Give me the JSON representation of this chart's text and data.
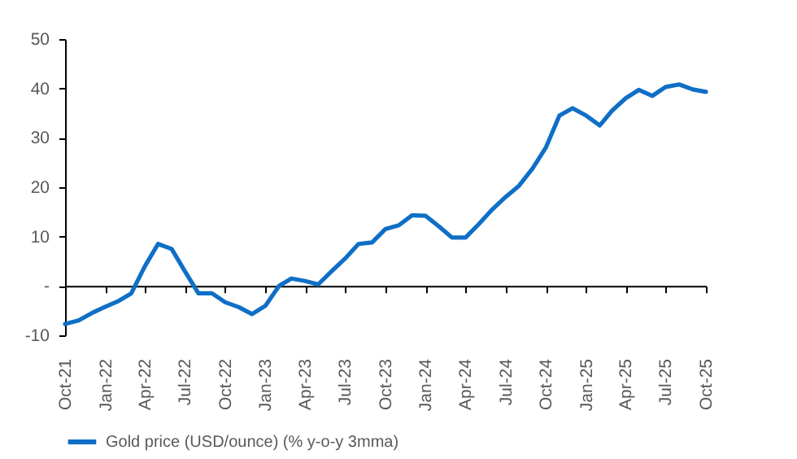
{
  "chart_data": {
    "type": "line",
    "x": [
      "2021-10",
      "2021-11",
      "2021-12",
      "2022-01",
      "2022-02",
      "2022-03",
      "2022-04",
      "2022-05",
      "2022-06",
      "2022-07",
      "2022-08",
      "2022-09",
      "2022-10",
      "2022-11",
      "2022-12",
      "2023-01",
      "2023-02",
      "2023-03",
      "2023-04",
      "2023-05",
      "2023-06",
      "2023-07",
      "2023-08",
      "2023-09",
      "2023-10",
      "2023-11",
      "2023-12",
      "2024-01",
      "2024-02",
      "2024-03",
      "2024-04",
      "2024-05",
      "2024-06",
      "2024-07",
      "2024-08",
      "2024-09",
      "2024-10",
      "2024-11",
      "2024-12",
      "2025-01",
      "2025-02",
      "2025-03",
      "2025-04",
      "2025-05",
      "2025-06",
      "2025-07",
      "2025-08",
      "2025-09",
      "2025-10"
    ],
    "series": [
      {
        "name": "Gold price (USD/ounce) (% y-o-y 3mma)",
        "color": "#0f6fc6",
        "values": [
          -7.7,
          -7,
          -5.5,
          -4.2,
          -3,
          -1.5,
          4,
          8.5,
          7.5,
          3,
          -1.5,
          -1.5,
          -3.3,
          -4.3,
          -5.7,
          -4,
          0,
          1.5,
          1,
          0.3,
          3,
          5.5,
          8.5,
          8.8,
          11.5,
          12.3,
          14.3,
          14.2,
          12,
          9.8,
          9.8,
          12.5,
          15.5,
          18,
          20.3,
          23.8,
          28,
          34.5,
          36,
          34.5,
          32.5,
          35.5,
          38,
          39.7,
          38.5,
          40.3,
          40.8,
          39.8,
          39.3
        ]
      }
    ],
    "xlim": [
      "2021-10",
      "2025-10"
    ],
    "xticks": [
      {
        "value": "2021-10",
        "label": "Oct-21"
      },
      {
        "value": "2022-01",
        "label": "Jan-22"
      },
      {
        "value": "2022-04",
        "label": "Apr-22"
      },
      {
        "value": "2022-07",
        "label": "Jul-22"
      },
      {
        "value": "2022-10",
        "label": "Oct-22"
      },
      {
        "value": "2023-01",
        "label": "Jan-23"
      },
      {
        "value": "2023-04",
        "label": "Apr-23"
      },
      {
        "value": "2023-07",
        "label": "Jul-23"
      },
      {
        "value": "2023-10",
        "label": "Oct-23"
      },
      {
        "value": "2024-01",
        "label": "Jan-24"
      },
      {
        "value": "2024-04",
        "label": "Apr-24"
      },
      {
        "value": "2024-07",
        "label": "Jul-24"
      },
      {
        "value": "2024-10",
        "label": "Oct-24"
      },
      {
        "value": "2025-01",
        "label": "Jan-25"
      },
      {
        "value": "2025-04",
        "label": "Apr-25"
      },
      {
        "value": "2025-07",
        "label": "Jul-25"
      },
      {
        "value": "2025-10",
        "label": "Oct-25"
      }
    ],
    "ylim": [
      -10,
      50
    ],
    "yticks": [
      -10,
      {
        "value": 0,
        "label": "-"
      },
      10,
      20,
      30,
      40,
      50
    ],
    "legend": "bottom",
    "marker": "none",
    "line_style": "solid"
  }
}
